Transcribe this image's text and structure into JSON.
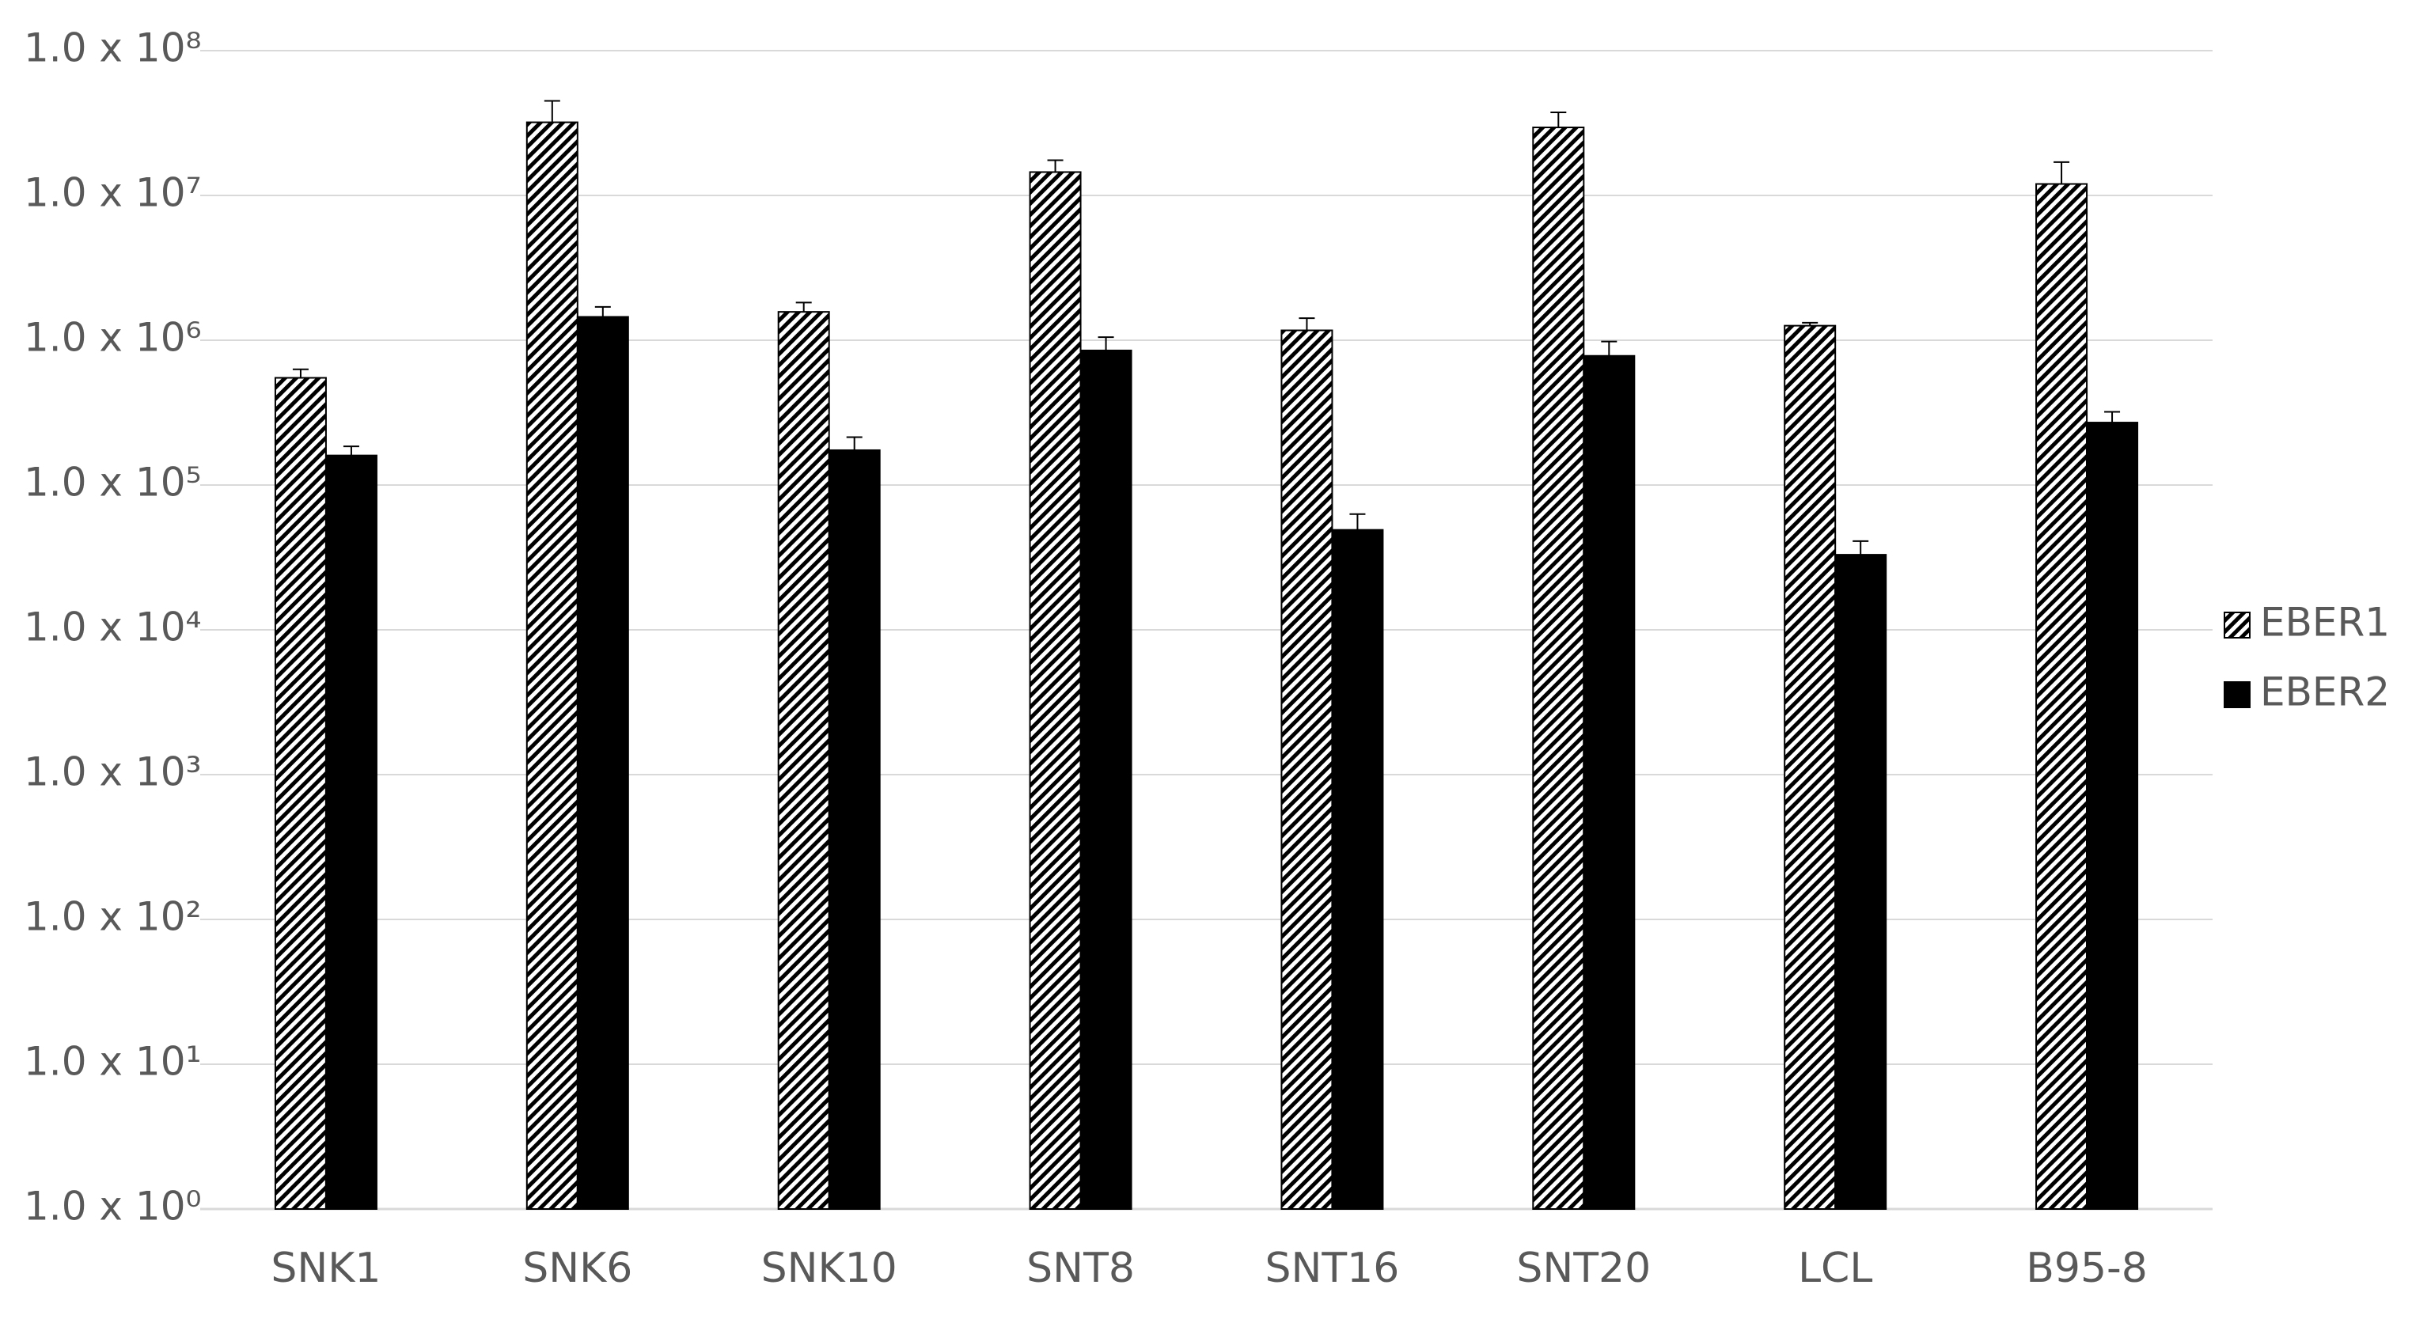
{
  "chart_data": {
    "type": "bar",
    "log_scale": true,
    "grid": true,
    "legend": "right",
    "categories": [
      "SNK1",
      "SNK6",
      "SNK10",
      "SNT8",
      "SNT16",
      "SNT20",
      "LCL",
      "B95-8"
    ],
    "series": [
      {
        "name": "EBER1",
        "color": "#000000",
        "hatch": true,
        "values": [
          550000,
          32000000,
          1570000,
          14500000,
          1170000,
          29500000,
          1260000,
          12000000
        ],
        "errors": [
          80000,
          13000000,
          250000,
          3000000,
          250000,
          8000000,
          60000,
          5000000
        ]
      },
      {
        "name": "EBER2",
        "color": "#000000",
        "hatch": false,
        "values": [
          160000,
          1450000,
          174000,
          850000,
          49000,
          780000,
          33000,
          270000
        ],
        "errors": [
          25000,
          250000,
          40000,
          200000,
          14000,
          200000,
          8000,
          50000
        ]
      }
    ],
    "ylim": [
      1,
      100000000
    ],
    "yticks": [
      {
        "value": 1,
        "label": "1.0 x 10⁰"
      },
      {
        "value": 10,
        "label": "1.0 x 10¹"
      },
      {
        "value": 100,
        "label": "1.0 x 10²"
      },
      {
        "value": 1000,
        "label": "1.0 x 10³"
      },
      {
        "value": 10000,
        "label": "1.0 x 10⁴"
      },
      {
        "value": 100000,
        "label": "1.0 x 10⁵"
      },
      {
        "value": 1000000,
        "label": "1.0 x 10⁶"
      },
      {
        "value": 10000000,
        "label": "1.0 x 10⁷"
      },
      {
        "value": 100000000,
        "label": "1.0 x 10⁸"
      }
    ]
  }
}
